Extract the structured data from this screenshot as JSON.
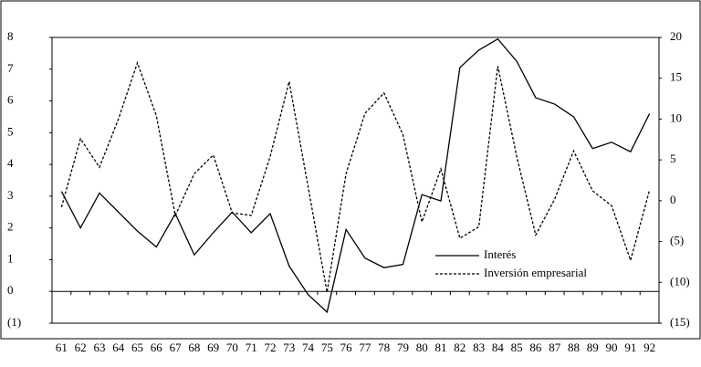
{
  "chart_data": {
    "type": "line",
    "categories": [
      "61",
      "62",
      "63",
      "64",
      "65",
      "66",
      "67",
      "68",
      "69",
      "70",
      "71",
      "72",
      "73",
      "74",
      "75",
      "76",
      "77",
      "78",
      "79",
      "80",
      "81",
      "82",
      "83",
      "84",
      "85",
      "86",
      "87",
      "88",
      "89",
      "90",
      "91",
      "92"
    ],
    "series": [
      {
        "name": "Interés",
        "color": "#000000",
        "dash": "solid",
        "axis": "y",
        "values": [
          3.15,
          2.0,
          3.1,
          2.5,
          1.9,
          1.4,
          2.45,
          1.15,
          1.85,
          2.5,
          1.85,
          2.45,
          0.8,
          -0.1,
          -0.65,
          1.95,
          1.05,
          0.75,
          0.85,
          3.05,
          2.85,
          7.05,
          7.6,
          7.95,
          7.25,
          6.1,
          5.9,
          5.5,
          4.5,
          4.7,
          4.4,
          5.6
        ]
      },
      {
        "name": "Inversión empresarial",
        "color": "#000000",
        "dash": "dashed",
        "axis": "y2",
        "values": [
          -0.8,
          7.6,
          4.1,
          10,
          16.9,
          10.4,
          -1.8,
          3.3,
          5.6,
          -1.5,
          -1.8,
          5.4,
          14.6,
          1.7,
          -11.2,
          3.3,
          10.7,
          13.2,
          8.1,
          -2.6,
          3.9,
          -4.6,
          -3.2,
          16.5,
          5.4,
          -4.2,
          0.2,
          6.1,
          1.2,
          -0.6,
          -7.3,
          1.3
        ]
      }
    ],
    "ylim": [
      -1,
      8
    ],
    "yticks": [
      {
        "value": -1,
        "label": "(1)"
      },
      0,
      1,
      2,
      3,
      4,
      5,
      6,
      7,
      8
    ],
    "y2lim": [
      -15,
      20
    ],
    "y2ticks": [
      {
        "value": -15,
        "label": "(15)"
      },
      {
        "value": -10,
        "label": "(10)"
      },
      {
        "value": -5,
        "label": "(5)"
      },
      0,
      5,
      10,
      15,
      20
    ],
    "legend": "lower right"
  }
}
